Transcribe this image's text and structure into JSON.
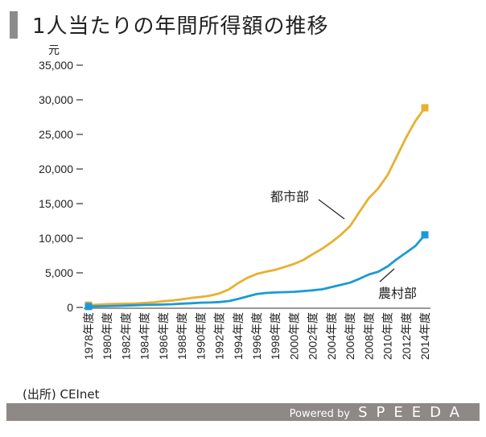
{
  "title": "1人当たりの年間所得額の推移",
  "source": "(出所) CEInet",
  "footer": {
    "powered": "Powered by",
    "brand": "SPEEDA"
  },
  "chart_data": {
    "type": "line",
    "title": "1人当たりの年間所得額の推移",
    "ylabel": "元",
    "xlabel": "",
    "ylim": [
      0,
      35000
    ],
    "yticks": [
      0,
      5000,
      10000,
      15000,
      20000,
      25000,
      30000,
      35000
    ],
    "ytick_labels": [
      "0",
      "5,000",
      "10,000",
      "15,000",
      "20,000",
      "25,000",
      "30,000",
      "35,000"
    ],
    "x": [
      1978,
      1979,
      1980,
      1981,
      1982,
      1983,
      1984,
      1985,
      1986,
      1987,
      1988,
      1989,
      1990,
      1991,
      1992,
      1993,
      1994,
      1995,
      1996,
      1997,
      1998,
      1999,
      2000,
      2001,
      2002,
      2003,
      2004,
      2005,
      2006,
      2007,
      2008,
      2009,
      2010,
      2011,
      2012,
      2013,
      2014
    ],
    "xtick_labels": [
      "1978年度",
      "1980年度",
      "1982年度",
      "1984年度",
      "1986年度",
      "1988年度",
      "1990年度",
      "1992年度",
      "1994年度",
      "1996年度",
      "1998年度",
      "2000年度",
      "2002年度",
      "2004年度",
      "2006年度",
      "2008年度",
      "2010年度",
      "2012年度",
      "2014年度"
    ],
    "series": [
      {
        "name": "都市部",
        "color": "#e8b030",
        "values": [
          343,
          405,
          478,
          500,
          535,
          565,
          652,
          739,
          900,
          1002,
          1180,
          1374,
          1510,
          1701,
          2027,
          2577,
          3496,
          4283,
          4839,
          5160,
          5425,
          5854,
          6280,
          6860,
          7703,
          8472,
          9422,
          10493,
          11759,
          13786,
          15781,
          17175,
          19109,
          21810,
          24565,
          26955,
          28844
        ]
      },
      {
        "name": "農村部",
        "color": "#1a9ad8",
        "values": [
          134,
          160,
          191,
          223,
          270,
          310,
          355,
          398,
          424,
          463,
          545,
          602,
          686,
          709,
          784,
          922,
          1221,
          1578,
          1926,
          2090,
          2162,
          2210,
          2253,
          2366,
          2476,
          2622,
          2936,
          3255,
          3587,
          4140,
          4761,
          5153,
          5919,
          6977,
          7917,
          8896,
          10489
        ]
      }
    ]
  }
}
